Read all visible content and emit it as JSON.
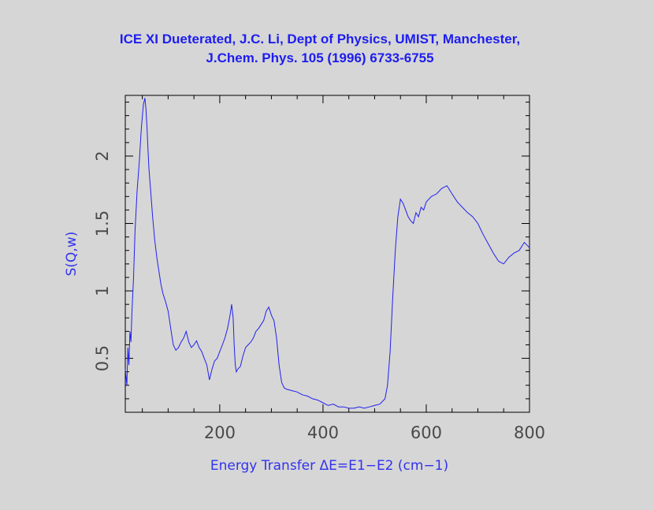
{
  "title_lines": [
    "ICE XI Dueterated, J.C. Li, Dept of Physics, UMIST, Manchester,",
    "J.Chem. Phys. 105 (1996) 6733-6755"
  ],
  "colors": {
    "background": "#d6d6d6",
    "title": "#1d1df0",
    "series": "#2020ee",
    "axis_label": "#3232ee",
    "tick_label": "#4a4a4a",
    "frame": "#000000"
  },
  "chart_data": {
    "type": "line",
    "title": "ICE XI Dueterated, J.C. Li, Dept of Physics, UMIST, Manchester, J.Chem. Phys. 105 (1996) 6733-6755",
    "xlabel": "Energy Transfer ΔE=E1−E2 (cm−1)",
    "ylabel": "S(Q,w)",
    "xlim": [
      17,
      800
    ],
    "ylim": [
      0.1,
      2.45
    ],
    "xticks": [
      200,
      400,
      600,
      800
    ],
    "xtick_labels": [
      "200",
      "400",
      "600",
      "800"
    ],
    "yticks": [
      0.5,
      1,
      1.5,
      2
    ],
    "ytick_labels": [
      "0.5",
      "1",
      "1.5",
      "2"
    ],
    "grid": false,
    "legend": "none",
    "series": [
      {
        "x": [
          17,
          20,
          22,
          24,
          26,
          28,
          30,
          33,
          36,
          40,
          44,
          48,
          52,
          55,
          57,
          59,
          61,
          63,
          66,
          70,
          74,
          78,
          82,
          86,
          90,
          95,
          100,
          105,
          110,
          115,
          120,
          125,
          130,
          135,
          140,
          145,
          150,
          155,
          160,
          165,
          170,
          175,
          180,
          185,
          190,
          195,
          200,
          205,
          210,
          215,
          220,
          223,
          226,
          228,
          230,
          232,
          235,
          240,
          245,
          250,
          255,
          260,
          265,
          270,
          275,
          280,
          285,
          290,
          295,
          300,
          305,
          310,
          315,
          320,
          325,
          330,
          340,
          350,
          360,
          370,
          380,
          390,
          400,
          410,
          420,
          430,
          440,
          450,
          460,
          470,
          480,
          490,
          500,
          510,
          520,
          525,
          530,
          535,
          540,
          545,
          550,
          555,
          560,
          565,
          570,
          575,
          580,
          585,
          590,
          595,
          600,
          610,
          620,
          630,
          640,
          650,
          660,
          670,
          680,
          690,
          700,
          710,
          720,
          730,
          740,
          750,
          760,
          770,
          780,
          790,
          800
        ],
        "y": [
          0.42,
          0.3,
          0.58,
          0.45,
          0.7,
          0.62,
          0.85,
          1.1,
          1.45,
          1.75,
          1.95,
          2.2,
          2.38,
          2.43,
          2.35,
          2.22,
          2.05,
          1.9,
          1.75,
          1.55,
          1.38,
          1.25,
          1.15,
          1.05,
          0.98,
          0.92,
          0.85,
          0.72,
          0.6,
          0.56,
          0.58,
          0.62,
          0.65,
          0.7,
          0.62,
          0.58,
          0.6,
          0.63,
          0.58,
          0.55,
          0.5,
          0.45,
          0.34,
          0.42,
          0.48,
          0.5,
          0.55,
          0.6,
          0.65,
          0.72,
          0.82,
          0.9,
          0.8,
          0.6,
          0.45,
          0.4,
          0.42,
          0.44,
          0.52,
          0.58,
          0.6,
          0.62,
          0.65,
          0.7,
          0.72,
          0.75,
          0.78,
          0.85,
          0.88,
          0.82,
          0.78,
          0.65,
          0.45,
          0.32,
          0.28,
          0.27,
          0.26,
          0.25,
          0.23,
          0.22,
          0.2,
          0.19,
          0.17,
          0.15,
          0.16,
          0.14,
          0.14,
          0.13,
          0.13,
          0.14,
          0.13,
          0.14,
          0.15,
          0.16,
          0.2,
          0.3,
          0.55,
          0.95,
          1.3,
          1.55,
          1.68,
          1.65,
          1.6,
          1.55,
          1.52,
          1.5,
          1.58,
          1.55,
          1.62,
          1.6,
          1.66,
          1.7,
          1.72,
          1.76,
          1.78,
          1.72,
          1.66,
          1.62,
          1.58,
          1.55,
          1.5,
          1.42,
          1.35,
          1.28,
          1.22,
          1.2,
          1.25,
          1.28,
          1.3,
          1.36,
          1.32
        ]
      }
    ]
  }
}
